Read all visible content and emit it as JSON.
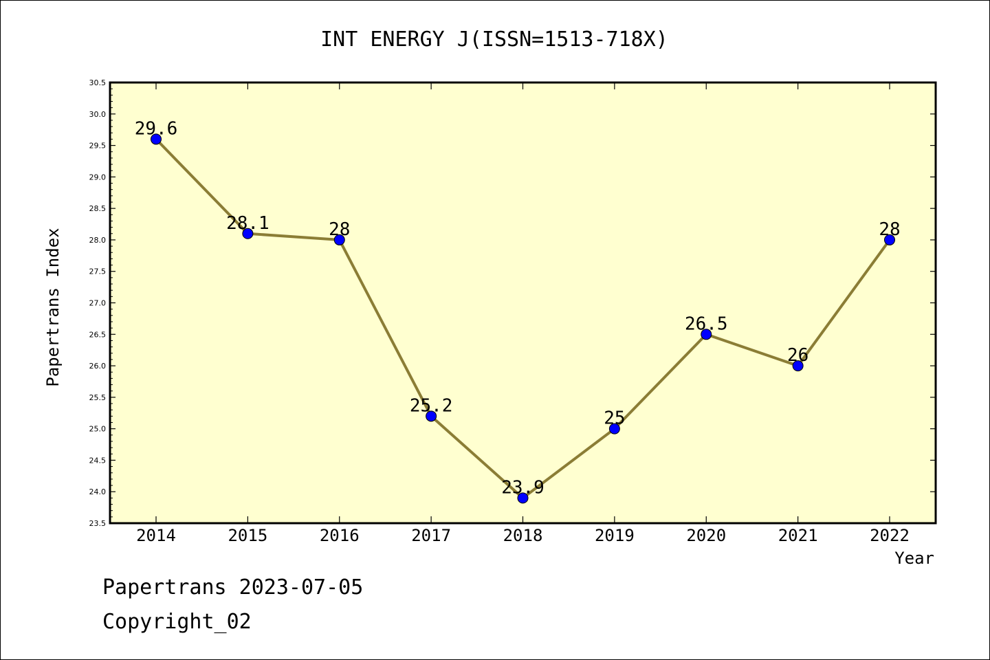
{
  "chart_data": {
    "type": "line",
    "title": "INT ENERGY J(ISSN=1513-718X)",
    "xlabel": "Year",
    "ylabel": "Papertrans Index",
    "categories": [
      "2014",
      "2015",
      "2016",
      "2017",
      "2018",
      "2019",
      "2020",
      "2021",
      "2022"
    ],
    "series": [
      {
        "values": [
          29.6,
          28.1,
          28.0,
          25.2,
          23.9,
          25.0,
          26.5,
          26.0,
          28.0
        ],
        "labels": [
          "29.6",
          "28.1",
          "28",
          "25.2",
          "23.9",
          "25",
          "26.5",
          "26",
          "28"
        ]
      }
    ],
    "ylim": [
      23.5,
      30.5
    ],
    "yticks": [
      "23.5",
      "24.0",
      "24.5",
      "25.0",
      "25.5",
      "26.0",
      "26.5",
      "27.0",
      "27.5",
      "28.0",
      "28.5",
      "29.0",
      "29.5",
      "30.0",
      "30.5"
    ],
    "grid": false,
    "colors": {
      "plot_background": "#ffffd0",
      "line": "#8b7d35",
      "marker": "#0000ff"
    }
  },
  "footer": {
    "line1": "Papertrans 2023-07-05",
    "line2": "Copyright_02"
  }
}
